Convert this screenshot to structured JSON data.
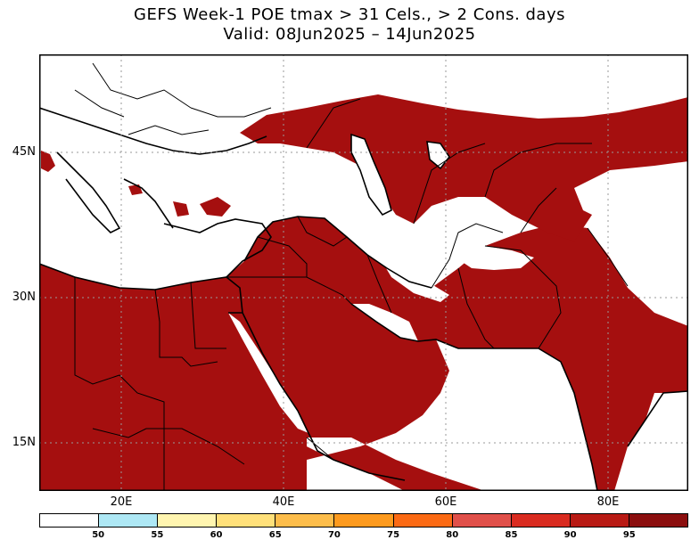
{
  "title": {
    "line1": "GEFS Week-1 POE tmax > 31 Cels., > 2 Cons. days",
    "line2": "Valid: 08Jun2025 – 14Jun2025"
  },
  "map": {
    "lat_labels": [
      "45N",
      "30N",
      "15N"
    ],
    "lon_labels": [
      "20E",
      "40E",
      "60E",
      "80E"
    ],
    "fill_color": "#a50f0f",
    "land_outline_color": "#000000",
    "background_color": "#ffffff",
    "gridlines": true
  },
  "colorbar": {
    "colors": [
      "#ffffff",
      "#aee8f5",
      "#fff5b0",
      "#ffe07a",
      "#fdbd4b",
      "#fd9a1e",
      "#fb6a14",
      "#e0504a",
      "#d92b20",
      "#b81a14",
      "#8b0e0e"
    ],
    "labels": [
      "50",
      "55",
      "60",
      "65",
      "70",
      "75",
      "80",
      "85",
      "90",
      "95"
    ]
  }
}
